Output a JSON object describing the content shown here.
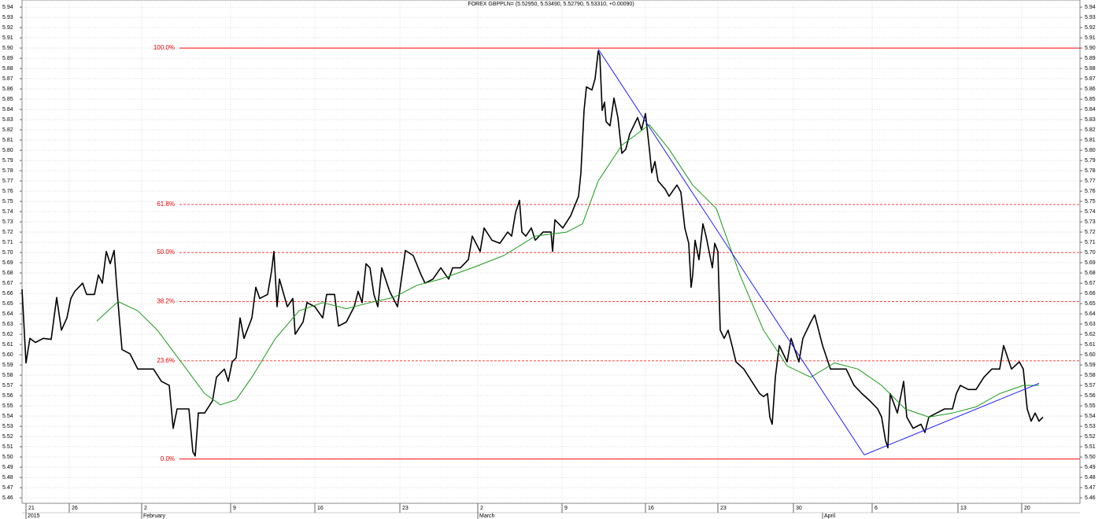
{
  "chart_data": {
    "type": "line",
    "title": "FOREX GBPPLN= (5.52950, 5.53490, 5.52790, 5.53310, +0.00090)",
    "grid": true,
    "xlim": [
      0,
      134.4
    ],
    "ylim": [
      5.4547,
      5.947
    ],
    "xticks": [
      {
        "value": 0.5,
        "label": "21"
      },
      {
        "value": 6.0,
        "label": "26"
      },
      {
        "value": 15.2,
        "label": "2"
      },
      {
        "value": 26.5,
        "label": "9"
      },
      {
        "value": 37.2,
        "label": "16"
      },
      {
        "value": 48.0,
        "label": "23"
      },
      {
        "value": 57.9,
        "label": "2"
      },
      {
        "value": 68.6,
        "label": "9"
      },
      {
        "value": 79.2,
        "label": "16"
      },
      {
        "value": 88.4,
        "label": "23"
      },
      {
        "value": 98.0,
        "label": "30"
      },
      {
        "value": 108.0,
        "label": "6"
      },
      {
        "value": 118.9,
        "label": "13"
      },
      {
        "value": 127.0,
        "label": "20"
      }
    ],
    "xperiods": [
      {
        "value": 0.5,
        "label": "2015"
      },
      {
        "value": 15.2,
        "label": "February"
      },
      {
        "value": 57.9,
        "label": "March"
      },
      {
        "value": 101.7,
        "label": "April"
      }
    ],
    "yticks": [
      5.46,
      5.47,
      5.48,
      5.49,
      {
        "value": 5.5,
        "label": "5.50"
      },
      5.51,
      5.52,
      5.53,
      5.54,
      5.55,
      5.56,
      5.57,
      5.58,
      5.59,
      {
        "value": 5.6,
        "label": "5.60"
      },
      5.61,
      5.62,
      5.63,
      5.64,
      5.65,
      5.66,
      5.67,
      5.68,
      5.69,
      {
        "value": 5.7,
        "label": "5.70"
      },
      5.71,
      5.72,
      5.73,
      5.74,
      5.75,
      5.76,
      5.77,
      5.78,
      5.79,
      {
        "value": 5.8,
        "label": "5.80"
      },
      5.81,
      5.82,
      5.83,
      5.84,
      5.85,
      5.86,
      5.87,
      5.88,
      5.89,
      {
        "value": 5.9,
        "label": "5.90"
      },
      5.91,
      5.92,
      5.93,
      5.94
    ],
    "series": [
      {
        "color": "#000000",
        "width": 1.6,
        "x": [
          0,
          0.5,
          1.0,
          1.7,
          2.7,
          3.7,
          4.4,
          5.0,
          5.7,
          6.2,
          6.7,
          7.7,
          8.2,
          9.2,
          9.7,
          10.2,
          10.7,
          11.2,
          11.7,
          12.0,
          12.4,
          12.7,
          13.7,
          14.7,
          15.7,
          16.7,
          17.7,
          18.7,
          19.2,
          19.7,
          20.7,
          21.2,
          21.7,
          22.0,
          22.4,
          23.2,
          24.2,
          24.7,
          25.7,
          26.2,
          26.7,
          27.2,
          27.7,
          28.2,
          29.2,
          29.7,
          30.2,
          31.2,
          31.7,
          32.0,
          32.4,
          32.7,
          33.7,
          34.4,
          34.7,
          35.7,
          36.2,
          37.2,
          38.2,
          38.7,
          39.7,
          40.2,
          41.2,
          42.2,
          42.7,
          43.2,
          43.7,
          44.2,
          44.7,
          45.2,
          45.7,
          46.7,
          47.7,
          48.2,
          48.7,
          49.7,
          50.7,
          51.2,
          52.2,
          53.2,
          54.2,
          54.7,
          55.7,
          56.7,
          57.2,
          58.2,
          58.7,
          59.7,
          60.7,
          61.7,
          62.2,
          62.7,
          63.2,
          63.5,
          64.0,
          64.7,
          65.2,
          66.2,
          67.2,
          67.4,
          67.7,
          68.7,
          69.7,
          70.7,
          71.0,
          71.4,
          71.7,
          72.4,
          72.8,
          73.2,
          73.4,
          73.7,
          74.0,
          74.2,
          74.7,
          75.2,
          75.7,
          76.2,
          76.7,
          77.2,
          78.2,
          78.7,
          79.2,
          79.7,
          80.0,
          80.4,
          80.8,
          81.7,
          82.2,
          83.2,
          83.7,
          84.2,
          84.7,
          85.0,
          85.2,
          85.5,
          86.0,
          86.5,
          86.9,
          87.7,
          88.0,
          88.4,
          88.7,
          89.2,
          89.7,
          90.2,
          90.7,
          91.7,
          92.7,
          93.7,
          94.2,
          94.7,
          95.0,
          95.3,
          95.7,
          96.2,
          97.2,
          97.7,
          98.7,
          99.2,
          100.2,
          100.7,
          101.7,
          102.7,
          103.7,
          104.7,
          105.7,
          106.7,
          107.7,
          108.7,
          109.2,
          109.7,
          110.0,
          110.3,
          111.2,
          111.7,
          112.0,
          112.4,
          113.2,
          114.2,
          114.7,
          115.2,
          116.2,
          117.2,
          118.2,
          118.7,
          119.2,
          120.2,
          121.2,
          122.2,
          123.2,
          124.2,
          124.7,
          125.7,
          126.7,
          127.2,
          127.7,
          128.2,
          128.7,
          129.2,
          129.7
        ],
        "values": [
          5.664,
          5.592,
          5.616,
          5.612,
          5.616,
          5.615,
          5.656,
          5.624,
          5.636,
          5.655,
          5.662,
          5.67,
          5.659,
          5.659,
          5.678,
          5.67,
          5.701,
          5.689,
          5.702,
          5.67,
          5.632,
          5.605,
          5.601,
          5.586,
          5.586,
          5.586,
          5.574,
          5.57,
          5.528,
          5.547,
          5.547,
          5.547,
          5.505,
          5.501,
          5.543,
          5.543,
          5.555,
          5.578,
          5.586,
          5.574,
          5.593,
          5.597,
          5.636,
          5.616,
          5.636,
          5.666,
          5.655,
          5.659,
          5.682,
          5.701,
          5.647,
          5.674,
          5.647,
          5.655,
          5.62,
          5.632,
          5.651,
          5.647,
          5.636,
          5.659,
          5.659,
          5.628,
          5.632,
          5.647,
          5.662,
          5.651,
          5.689,
          5.685,
          5.659,
          5.647,
          5.685,
          5.662,
          5.647,
          5.674,
          5.702,
          5.697,
          5.678,
          5.67,
          5.674,
          5.685,
          5.674,
          5.685,
          5.685,
          5.693,
          5.716,
          5.701,
          5.724,
          5.712,
          5.709,
          5.72,
          5.716,
          5.739,
          5.751,
          5.72,
          5.716,
          5.724,
          5.712,
          5.72,
          5.72,
          5.701,
          5.732,
          5.724,
          5.736,
          5.755,
          5.778,
          5.839,
          5.862,
          5.859,
          5.87,
          5.897,
          5.893,
          5.839,
          5.847,
          5.828,
          5.824,
          5.851,
          5.832,
          5.797,
          5.801,
          5.816,
          5.832,
          5.82,
          5.836,
          5.801,
          5.778,
          5.789,
          5.77,
          5.762,
          5.755,
          5.766,
          5.759,
          5.724,
          5.709,
          5.666,
          5.678,
          5.712,
          5.693,
          5.728,
          5.716,
          5.685,
          5.709,
          5.701,
          5.624,
          5.616,
          5.624,
          5.609,
          5.593,
          5.586,
          5.574,
          5.562,
          5.559,
          5.562,
          5.539,
          5.532,
          5.578,
          5.609,
          5.593,
          5.616,
          5.593,
          5.616,
          5.632,
          5.639,
          5.609,
          5.586,
          5.586,
          5.586,
          5.57,
          5.562,
          5.555,
          5.547,
          5.539,
          5.516,
          5.509,
          5.562,
          5.543,
          5.562,
          5.574,
          5.539,
          5.528,
          5.532,
          5.524,
          5.539,
          5.543,
          5.547,
          5.547,
          5.562,
          5.57,
          5.566,
          5.566,
          5.578,
          5.586,
          5.586,
          5.609,
          5.586,
          5.593,
          5.586,
          5.547,
          5.535,
          5.543,
          5.535,
          5.539
        ]
      },
      {
        "color": "#1a9a1a",
        "width": 1,
        "x": [
          9.5,
          12.2,
          14.7,
          17.2,
          20.2,
          23.2,
          25.2,
          27.2,
          29.2,
          32.2,
          35.2,
          38.2,
          41.2,
          44.2,
          47.2,
          50.2,
          53.2,
          57.2,
          61.2,
          65.2,
          69.2,
          71.2,
          73.2,
          76.2,
          79.7,
          82.2,
          85.2,
          88.2,
          91.2,
          94.2,
          97.2,
          100.2,
          103.2,
          106.2,
          109.2,
          112.2,
          115.2,
          118.2,
          121.2,
          124.2,
          127.2,
          129.2
        ],
        "values": [
          5.633,
          5.652,
          5.643,
          5.624,
          5.593,
          5.562,
          5.551,
          5.556,
          5.578,
          5.616,
          5.643,
          5.651,
          5.645,
          5.651,
          5.656,
          5.668,
          5.674,
          5.685,
          5.697,
          5.716,
          5.72,
          5.728,
          5.77,
          5.805,
          5.825,
          5.801,
          5.766,
          5.743,
          5.678,
          5.624,
          5.589,
          5.578,
          5.592,
          5.586,
          5.57,
          5.547,
          5.539,
          5.543,
          5.549,
          5.562,
          5.57,
          5.57
        ]
      }
    ],
    "trendlines": [
      {
        "color": "#2020ff",
        "x": [
          73.2,
          107.0
        ],
        "values": [
          5.899,
          5.502
        ]
      },
      {
        "color": "#2020ff",
        "x": [
          107.0,
          129.2
        ],
        "values": [
          5.502,
          5.572
        ]
      }
    ],
    "fib_levels": {
      "color": "#ff0000",
      "from_x": 20.0,
      "levels": [
        {
          "value": 5.9,
          "label": "100.0%"
        },
        {
          "value": 5.747,
          "label": "61.8%"
        },
        {
          "value": 5.7,
          "label": "50.0%"
        },
        {
          "value": 5.652,
          "label": "38.2%"
        },
        {
          "value": 5.594,
          "label": "23.6%"
        },
        {
          "value": 5.498,
          "label": "0.0%"
        }
      ]
    }
  }
}
